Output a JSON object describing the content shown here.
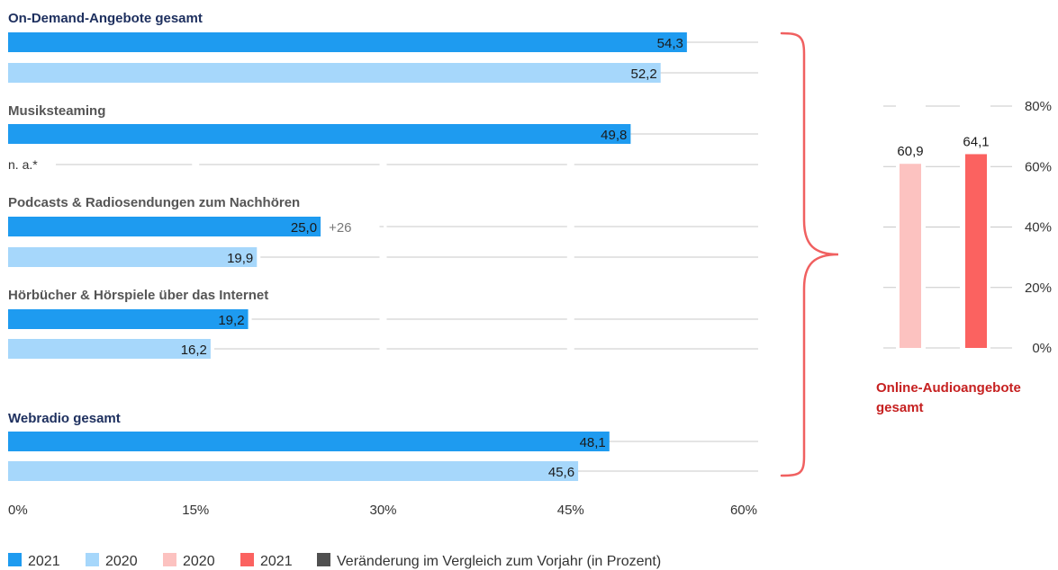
{
  "chart_data": [
    {
      "type": "bar",
      "orientation": "horizontal",
      "xlim": [
        0,
        60
      ],
      "ticks": [
        "0%",
        "15%",
        "30%",
        "45%",
        "60%"
      ],
      "tick_values": [
        0,
        15,
        30,
        45,
        60
      ],
      "groups": [
        {
          "label": "On-Demand-Angebote gesamt",
          "bars": [
            {
              "year": "2021",
              "value": 54.3,
              "value_label": "54,3"
            },
            {
              "year": "2020",
              "value": 52.2,
              "value_label": "52,2"
            }
          ]
        },
        {
          "label": "Musiksteaming",
          "bars": [
            {
              "year": "2021",
              "value": 49.8,
              "value_label": "49,8"
            },
            {
              "year": "2020",
              "value": null,
              "value_label": "n. a.*"
            }
          ]
        },
        {
          "label": "Podcasts & Radiosendungen zum Nachhören",
          "bars": [
            {
              "year": "2021",
              "value": 25.0,
              "value_label": "25,0",
              "change": "+26"
            },
            {
              "year": "2020",
              "value": 19.9,
              "value_label": "19,9"
            }
          ]
        },
        {
          "label": "Hörbücher & Hörspiele über das Internet",
          "bars": [
            {
              "year": "2021",
              "value": 19.2,
              "value_label": "19,2"
            },
            {
              "year": "2020",
              "value": 16.2,
              "value_label": "16,2"
            }
          ]
        },
        {
          "label": "Webradio gesamt",
          "bars": [
            {
              "year": "2021",
              "value": 48.1,
              "value_label": "48,1"
            },
            {
              "year": "2020",
              "value": 45.6,
              "value_label": "45,6"
            }
          ]
        }
      ]
    },
    {
      "type": "bar",
      "orientation": "vertical",
      "title": "Online-Audioangebote gesamt",
      "title_lines": [
        "Online-Audioangebote",
        "gesamt"
      ],
      "ylim": [
        0,
        80
      ],
      "ticks": [
        "0%",
        "20%",
        "40%",
        "60%",
        "80%"
      ],
      "tick_values": [
        0,
        20,
        40,
        60,
        80
      ],
      "bars": [
        {
          "year": "2020",
          "value": 60.9,
          "value_label": "60,9"
        },
        {
          "year": "2021",
          "value": 64.1,
          "value_label": "64,1"
        }
      ]
    }
  ],
  "legend": [
    {
      "label": "2021",
      "color": "#1e9bf0"
    },
    {
      "label": "2020",
      "color": "#a6d7fb"
    },
    {
      "label": "2020",
      "color": "#fcc2c0"
    },
    {
      "label": "2021",
      "color": "#fb6260"
    },
    {
      "label": "Veränderung im Vergleich zum Vorjahr (in Prozent)",
      "color": "#505050"
    }
  ],
  "colors": {
    "bar_2021": "#1e9bf0",
    "bar_2020": "#a6d7fb",
    "right_2020": "#fcc2c0",
    "right_2021": "#fb6260",
    "heading_blue": "#1d2f5e",
    "heading_red": "#c62020",
    "brace": "#f06060",
    "grid": "#c8c8c8"
  }
}
